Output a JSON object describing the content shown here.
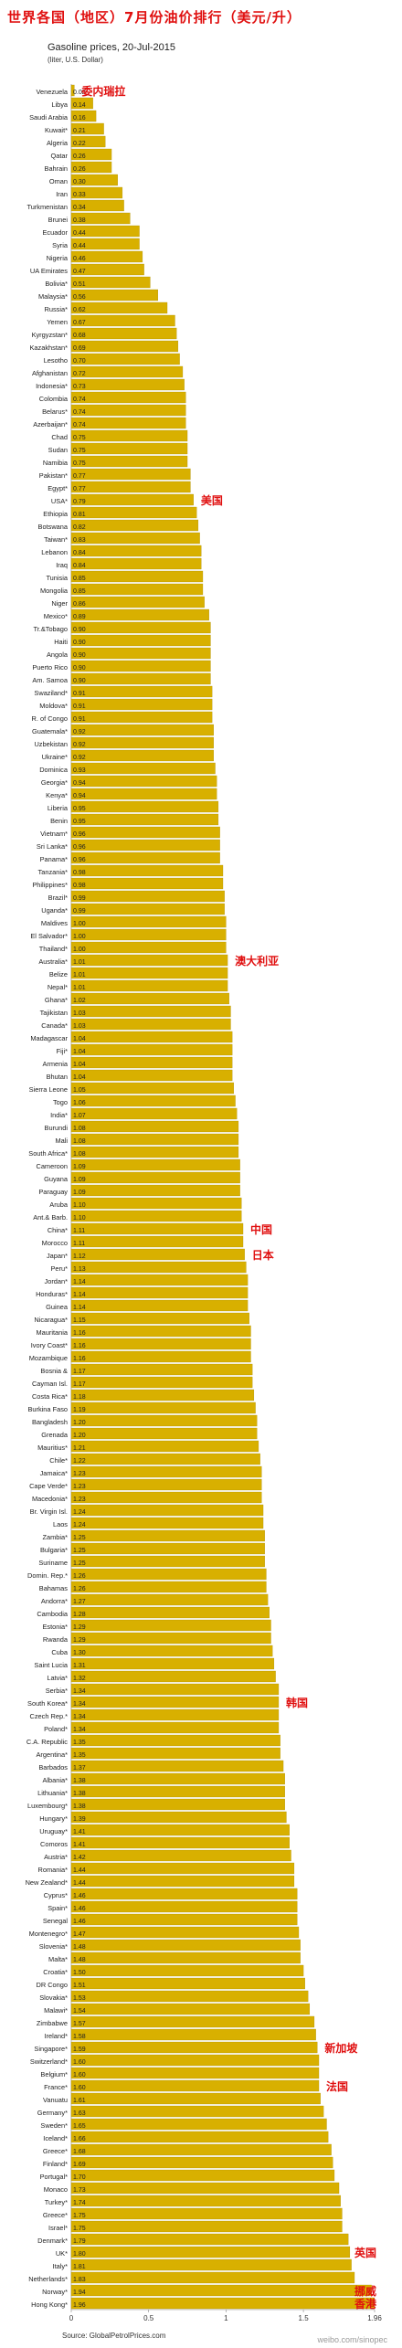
{
  "header": {
    "title_cn": "世界各国（地区）7月份油价排行（美元/升）",
    "subtitle": "Gasoline prices, 20-Jul-2015",
    "unit": "(liter, U.S. Dollar)"
  },
  "footer": {
    "source": "Source: GlobalPetrolPrices.com",
    "watermark": "weibo.com/sinopec"
  },
  "colors": {
    "bar": "#d8b000",
    "bar_edge": "#a88a00",
    "annotation": "#e01010"
  },
  "chart_data": {
    "type": "bar",
    "orientation": "horizontal",
    "title": "Gasoline prices, 20-Jul-2015",
    "xlabel": "",
    "ylabel": "",
    "xlim": [
      0,
      1.96
    ],
    "x_ticks": [
      "0",
      "0.5",
      "1",
      "1.5",
      "1.96"
    ],
    "categories": [
      "Venezuela",
      "Libya",
      "Saudi Arabia",
      "Kuwait*",
      "Algeria",
      "Qatar",
      "Bahrain",
      "Oman",
      "Iran",
      "Turkmenistan",
      "Brunei",
      "Ecuador",
      "Syria",
      "Nigeria",
      "UA Emirates",
      "Bolivia*",
      "Malaysia*",
      "Russia*",
      "Yemen",
      "Kyrgyzstan*",
      "Kazakhstan*",
      "Lesotho",
      "Afghanistan",
      "Indonesia*",
      "Colombia",
      "Belarus*",
      "Azerbaijan*",
      "Chad",
      "Sudan",
      "Namibia",
      "Pakistan*",
      "Egypt*",
      "USA*",
      "Ethiopia",
      "Botswana",
      "Taiwan*",
      "Lebanon",
      "Iraq",
      "Tunisia",
      "Mongolia",
      "Niger",
      "Mexico*",
      "Tr.&Tobago",
      "Haiti",
      "Angola",
      "Puerto Rico",
      "Am. Samoa",
      "Swaziland*",
      "Moldova*",
      "R. of Congo",
      "Guatemala*",
      "Uzbekistan",
      "Ukraine*",
      "Dominica",
      "Georgia*",
      "Kenya*",
      "Liberia",
      "Benin",
      "Vietnam*",
      "Sri Lanka*",
      "Panama*",
      "Tanzania*",
      "Philippines*",
      "Brazil*",
      "Uganda*",
      "Maldives",
      "El Salvador*",
      "Thailand*",
      "Australia*",
      "Belize",
      "Nepal*",
      "Ghana*",
      "Tajikistan",
      "Canada*",
      "Madagascar",
      "Fiji*",
      "Armenia",
      "Bhutan",
      "Sierra Leone",
      "Togo",
      "India*",
      "Burundi",
      "Mali",
      "South Africa*",
      "Cameroon",
      "Guyana",
      "Paraguay",
      "Aruba",
      "Ant.& Barb.",
      "China*",
      "Morocco",
      "Japan*",
      "Peru*",
      "Jordan*",
      "Honduras*",
      "Guinea",
      "Nicaragua*",
      "Mauritania",
      "Ivory Coast*",
      "Mozambique",
      "Bosnia &",
      "Cayman Isl.",
      "Costa Rica*",
      "Burkina Faso",
      "Bangladesh",
      "Grenada",
      "Mauritius*",
      "Chile*",
      "Jamaica*",
      "Cape Verde*",
      "Macedonia*",
      "Br. Virgin Isl.",
      "Laos",
      "Zambia*",
      "Bulgaria*",
      "Suriname",
      "Domin. Rep.*",
      "Bahamas",
      "Andorra*",
      "Cambodia",
      "Estonia*",
      "Rwanda",
      "Cuba",
      "Saint Lucia",
      "Latvia*",
      "Serbia*",
      "South Korea*",
      "Czech Rep.*",
      "Poland*",
      "C.A. Republic",
      "Argentina*",
      "Barbados",
      "Albania*",
      "Lithuania*",
      "Luxembourg*",
      "Hungary*",
      "Uruguay*",
      "Comoros",
      "Austria*",
      "Romania*",
      "New Zealand*",
      "Cyprus*",
      "Spain*",
      "Senegal",
      "Montenegro*",
      "Slovenia*",
      "Malta*",
      "Croatia*",
      "DR Congo",
      "Slovakia*",
      "Malawi*",
      "Zimbabwe",
      "Ireland*",
      "Singapore*",
      "Switzerland*",
      "Belgium*",
      "France*",
      "Vanuatu",
      "Germany*",
      "Sweden*",
      "Iceland*",
      "Greece*",
      "Finland*",
      "Portugal*",
      "Monaco",
      "Turkey*",
      "Greece*",
      "Israel*",
      "Denmark*",
      "UK*",
      "Italy*",
      "Netherlands*",
      "Norway*",
      "Hong Kong*"
    ],
    "values": [
      0.02,
      0.14,
      0.16,
      0.21,
      0.22,
      0.26,
      0.26,
      0.3,
      0.33,
      0.34,
      0.38,
      0.44,
      0.44,
      0.46,
      0.47,
      0.51,
      0.56,
      0.62,
      0.67,
      0.68,
      0.69,
      0.7,
      0.72,
      0.73,
      0.74,
      0.74,
      0.74,
      0.75,
      0.75,
      0.75,
      0.77,
      0.77,
      0.79,
      0.81,
      0.82,
      0.83,
      0.84,
      0.84,
      0.85,
      0.85,
      0.86,
      0.89,
      0.9,
      0.9,
      0.9,
      0.9,
      0.9,
      0.91,
      0.91,
      0.91,
      0.92,
      0.92,
      0.92,
      0.93,
      0.94,
      0.94,
      0.95,
      0.95,
      0.96,
      0.96,
      0.96,
      0.98,
      0.98,
      0.99,
      0.99,
      1.0,
      1.0,
      1.0,
      1.01,
      1.01,
      1.01,
      1.02,
      1.03,
      1.03,
      1.04,
      1.04,
      1.04,
      1.04,
      1.05,
      1.06,
      1.07,
      1.08,
      1.08,
      1.08,
      1.09,
      1.09,
      1.09,
      1.1,
      1.1,
      1.11,
      1.11,
      1.12,
      1.13,
      1.14,
      1.14,
      1.14,
      1.15,
      1.16,
      1.16,
      1.16,
      1.17,
      1.17,
      1.18,
      1.19,
      1.2,
      1.2,
      1.21,
      1.22,
      1.23,
      1.23,
      1.23,
      1.24,
      1.24,
      1.25,
      1.25,
      1.25,
      1.26,
      1.26,
      1.27,
      1.28,
      1.29,
      1.29,
      1.3,
      1.31,
      1.32,
      1.34,
      1.34,
      1.34,
      1.34,
      1.35,
      1.35,
      1.37,
      1.38,
      1.38,
      1.38,
      1.39,
      1.41,
      1.41,
      1.42,
      1.44,
      1.44,
      1.46,
      1.46,
      1.46,
      1.47,
      1.48,
      1.48,
      1.5,
      1.51,
      1.53,
      1.54,
      1.57,
      1.58,
      1.59,
      1.6,
      1.6,
      1.6,
      1.61,
      1.63,
      1.65,
      1.66,
      1.68,
      1.69,
      1.7,
      1.73,
      1.74,
      1.75,
      1.75,
      1.79,
      1.8,
      1.81,
      1.83,
      1.94,
      1.96
    ],
    "annotations": [
      {
        "category_index": 0,
        "text": "委内瑞拉"
      },
      {
        "category_index": 32,
        "text": "美国"
      },
      {
        "category_index": 68,
        "text": "澳大利亚"
      },
      {
        "category_index": 89,
        "text": "中国"
      },
      {
        "category_index": 91,
        "text": "日本"
      },
      {
        "category_index": 126,
        "text": "韩国"
      },
      {
        "category_index": 153,
        "text": "新加坡"
      },
      {
        "category_index": 156,
        "text": "法国"
      },
      {
        "category_index": 169,
        "text": "英国"
      },
      {
        "category_index": 172,
        "text": "挪威"
      },
      {
        "category_index": 173,
        "text": "香港"
      }
    ]
  }
}
